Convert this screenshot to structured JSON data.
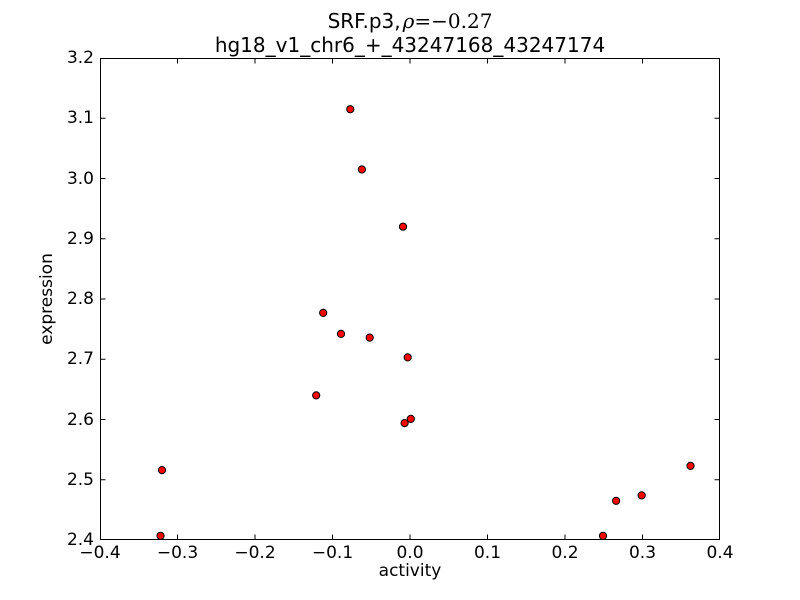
{
  "title": {
    "prefix": "SRF.p3,",
    "rho_symbol": "ρ",
    "rho_value": "=−0.27",
    "line2": "hg18_v1_chr6_+_43247168_43247174"
  },
  "chart_data": {
    "type": "scatter",
    "title": "SRF.p3, ρ=−0.27",
    "subtitle": "hg18_v1_chr6_+_43247168_43247174",
    "xlabel": "activity",
    "ylabel": "expression",
    "xlim": [
      -0.4,
      0.4
    ],
    "ylim": [
      2.4,
      3.2
    ],
    "xticks": [
      "−0.4",
      "−0.3",
      "−0.2",
      "−0.1",
      "0.0",
      "0.1",
      "0.2",
      "0.3",
      "0.4"
    ],
    "xtick_values": [
      -0.4,
      -0.3,
      -0.2,
      -0.1,
      0.0,
      0.1,
      0.2,
      0.3,
      0.4
    ],
    "yticks": [
      "2.4",
      "2.5",
      "2.6",
      "2.7",
      "2.8",
      "2.9",
      "3.0",
      "3.1",
      "3.2"
    ],
    "ytick_values": [
      2.4,
      2.5,
      2.6,
      2.7,
      2.8,
      2.9,
      3.0,
      3.1,
      3.2
    ],
    "grid": false,
    "legend": null,
    "marker": {
      "shape": "circle",
      "fill": "#ff0000",
      "edge": "#000000",
      "radius_px": 3.6
    },
    "frame_color": "#000000",
    "points": [
      [
        -0.077,
        3.115
      ],
      [
        -0.062,
        3.015
      ],
      [
        -0.009,
        2.92
      ],
      [
        -0.112,
        2.777
      ],
      [
        -0.089,
        2.742
      ],
      [
        -0.052,
        2.736
      ],
      [
        -0.003,
        2.703
      ],
      [
        -0.121,
        2.64
      ],
      [
        -0.007,
        2.594
      ],
      [
        0.001,
        2.601
      ],
      [
        -0.32,
        2.516
      ],
      [
        -0.322,
        2.407
      ],
      [
        0.362,
        2.523
      ],
      [
        0.266,
        2.465
      ],
      [
        0.299,
        2.474
      ],
      [
        0.249,
        2.407
      ]
    ]
  }
}
